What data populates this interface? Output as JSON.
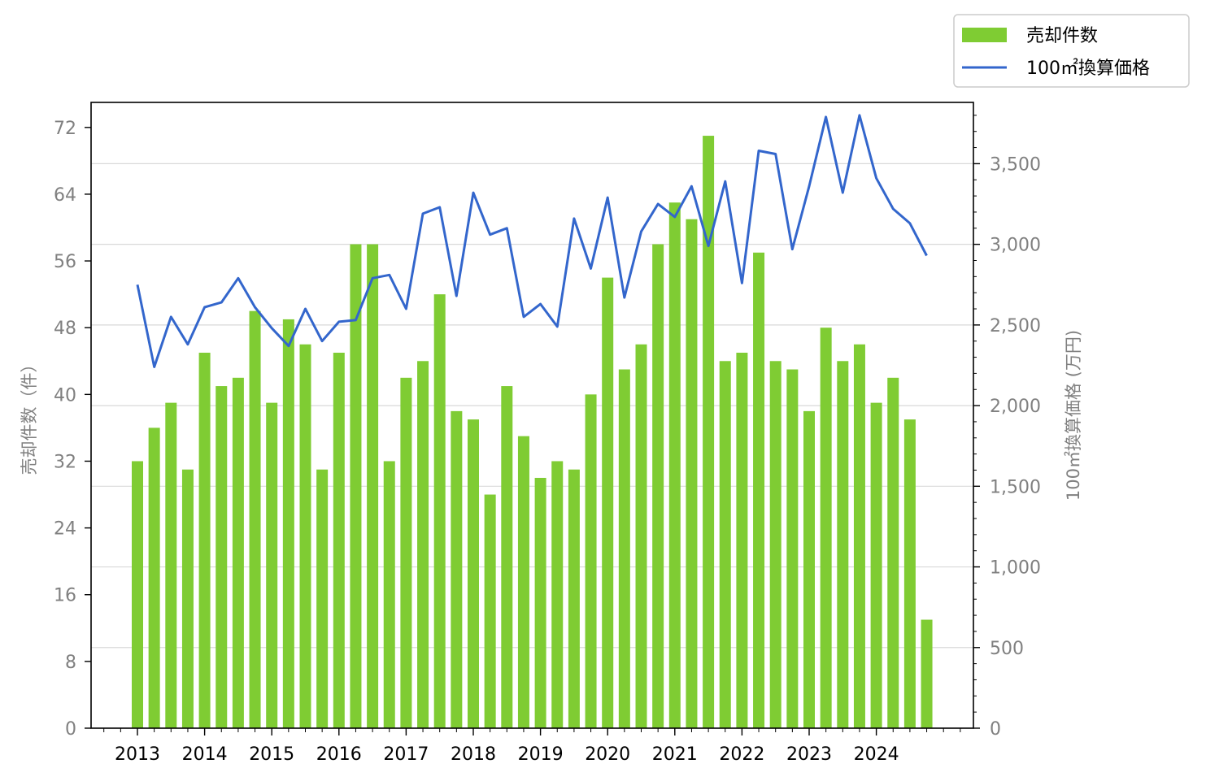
{
  "chart_data": {
    "type": "bar",
    "x": [
      "2013Q1",
      "2013Q2",
      "2013Q3",
      "2013Q4",
      "2014Q1",
      "2014Q2",
      "2014Q3",
      "2014Q4",
      "2015Q1",
      "2015Q2",
      "2015Q3",
      "2015Q4",
      "2016Q1",
      "2016Q2",
      "2016Q3",
      "2016Q4",
      "2017Q1",
      "2017Q2",
      "2017Q3",
      "2017Q4",
      "2018Q1",
      "2018Q2",
      "2018Q3",
      "2018Q4",
      "2019Q1",
      "2019Q2",
      "2019Q3",
      "2019Q4",
      "2020Q1",
      "2020Q2",
      "2020Q3",
      "2020Q4",
      "2021Q1",
      "2021Q2",
      "2021Q3",
      "2021Q4",
      "2022Q1",
      "2022Q2",
      "2022Q3",
      "2022Q4",
      "2023Q1",
      "2023Q2",
      "2023Q3",
      "2023Q4",
      "2024Q1",
      "2024Q2",
      "2024Q3",
      "2024Q4"
    ],
    "year_labels": [
      "2013",
      "2014",
      "2015",
      "2016",
      "2017",
      "2018",
      "2019",
      "2020",
      "2021",
      "2022",
      "2023",
      "2024"
    ],
    "series": [
      {
        "name": "売却件数",
        "type": "bar",
        "axis": "left",
        "color": "#7fcc33",
        "values": [
          32,
          36,
          39,
          31,
          45,
          41,
          42,
          50,
          39,
          49,
          46,
          31,
          45,
          58,
          58,
          32,
          42,
          44,
          52,
          38,
          37,
          28,
          41,
          35,
          30,
          32,
          31,
          40,
          54,
          43,
          46,
          58,
          63,
          61,
          71,
          44,
          45,
          57,
          44,
          43,
          38,
          48,
          44,
          46,
          39,
          42,
          37,
          13
        ]
      },
      {
        "name": "100㎡換算価格",
        "type": "line",
        "axis": "right",
        "color": "#3366cc",
        "values": [
          2750,
          2240,
          2550,
          2380,
          2610,
          2640,
          2790,
          2610,
          2480,
          2370,
          2600,
          2400,
          2520,
          2530,
          2790,
          2810,
          2600,
          3190,
          3230,
          2680,
          3320,
          3060,
          3100,
          2550,
          2630,
          2490,
          3160,
          2850,
          3290,
          2670,
          3080,
          3250,
          3170,
          3360,
          2990,
          3390,
          2760,
          3580,
          3560,
          2970,
          3360,
          3790,
          3320,
          3800,
          3410,
          3220,
          3130,
          2930
        ]
      }
    ],
    "y_left": {
      "label": "売却件数（件）",
      "lim": [
        0,
        75
      ],
      "ticks": [
        0,
        8,
        16,
        24,
        32,
        40,
        48,
        56,
        64,
        72
      ],
      "tick_labels": [
        "0",
        "8",
        "16",
        "24",
        "32",
        "40",
        "48",
        "56",
        "64",
        "72"
      ]
    },
    "y_right": {
      "label": "100㎡換算価格 (万円)",
      "lim": [
        0,
        3880
      ],
      "ticks": [
        0,
        500,
        1000,
        1500,
        2000,
        2500,
        3000,
        3500
      ],
      "tick_labels": [
        "0",
        "500",
        "1,000",
        "1,500",
        "2,000",
        "2,500",
        "3,000",
        "3,500"
      ]
    },
    "grid": "horizontal (right axis)",
    "legend": "top-right outside"
  }
}
